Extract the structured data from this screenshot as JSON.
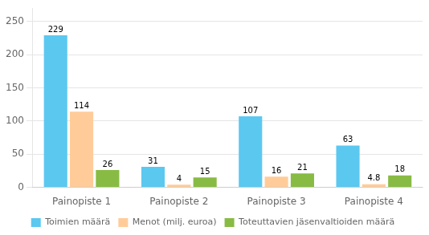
{
  "chart_data": {
    "type": "bar",
    "categories": [
      "Painopiste 1",
      "Painopiste 2",
      "Painopiste 3",
      "Painopiste 4"
    ],
    "series": [
      {
        "name": "Toimien määrä",
        "color": "#5BC8F0",
        "values": [
          229,
          31,
          107,
          63
        ]
      },
      {
        "name": "Menot (milj. euroa)",
        "color": "#FFCC99",
        "values": [
          114,
          4,
          16,
          4.8
        ]
      },
      {
        "name": "Toteuttavien jäsenvaltioiden määrä",
        "color": "#88BB44",
        "values": [
          26,
          15,
          21,
          18
        ]
      }
    ],
    "ylim": [
      0,
      270
    ],
    "yticks": [
      0,
      50,
      100,
      150,
      200,
      250
    ],
    "grid": true,
    "legend": "bottom",
    "data_labels": true
  }
}
